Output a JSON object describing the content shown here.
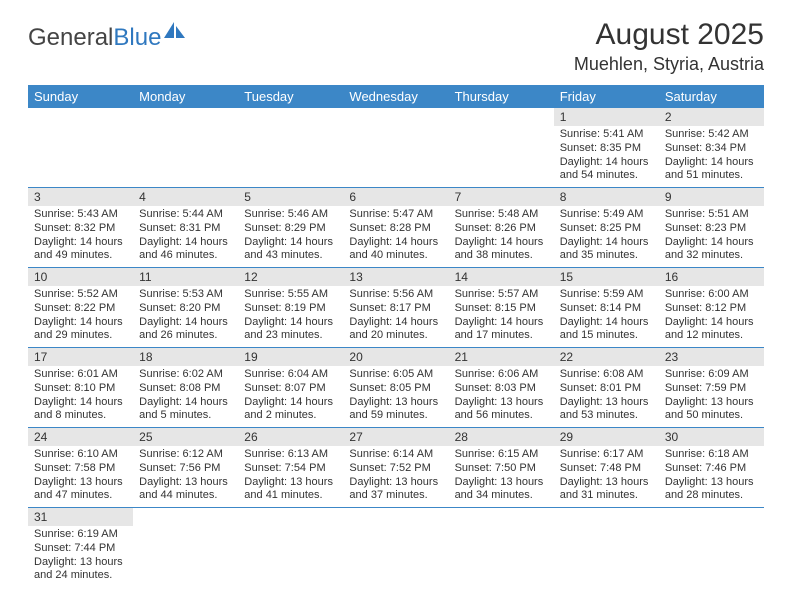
{
  "logo": {
    "text1": "General",
    "text2": "Blue"
  },
  "title": "August 2025",
  "location": "Muehlen, Styria, Austria",
  "colors": {
    "headerBg": "#3c87c7",
    "headerText": "#ffffff",
    "dayBarBg": "#e6e6e6",
    "rowBorder": "#3c87c7",
    "textColor": "#333333",
    "logoGray": "#444444",
    "logoBlue": "#2f78bf"
  },
  "weekdays": [
    "Sunday",
    "Monday",
    "Tuesday",
    "Wednesday",
    "Thursday",
    "Friday",
    "Saturday"
  ],
  "weeks": [
    [
      null,
      null,
      null,
      null,
      null,
      {
        "n": "1",
        "sunrise": "5:41 AM",
        "sunset": "8:35 PM",
        "day_h": "14",
        "day_m": "54"
      },
      {
        "n": "2",
        "sunrise": "5:42 AM",
        "sunset": "8:34 PM",
        "day_h": "14",
        "day_m": "51"
      }
    ],
    [
      {
        "n": "3",
        "sunrise": "5:43 AM",
        "sunset": "8:32 PM",
        "day_h": "14",
        "day_m": "49"
      },
      {
        "n": "4",
        "sunrise": "5:44 AM",
        "sunset": "8:31 PM",
        "day_h": "14",
        "day_m": "46"
      },
      {
        "n": "5",
        "sunrise": "5:46 AM",
        "sunset": "8:29 PM",
        "day_h": "14",
        "day_m": "43"
      },
      {
        "n": "6",
        "sunrise": "5:47 AM",
        "sunset": "8:28 PM",
        "day_h": "14",
        "day_m": "40"
      },
      {
        "n": "7",
        "sunrise": "5:48 AM",
        "sunset": "8:26 PM",
        "day_h": "14",
        "day_m": "38"
      },
      {
        "n": "8",
        "sunrise": "5:49 AM",
        "sunset": "8:25 PM",
        "day_h": "14",
        "day_m": "35"
      },
      {
        "n": "9",
        "sunrise": "5:51 AM",
        "sunset": "8:23 PM",
        "day_h": "14",
        "day_m": "32"
      }
    ],
    [
      {
        "n": "10",
        "sunrise": "5:52 AM",
        "sunset": "8:22 PM",
        "day_h": "14",
        "day_m": "29"
      },
      {
        "n": "11",
        "sunrise": "5:53 AM",
        "sunset": "8:20 PM",
        "day_h": "14",
        "day_m": "26"
      },
      {
        "n": "12",
        "sunrise": "5:55 AM",
        "sunset": "8:19 PM",
        "day_h": "14",
        "day_m": "23"
      },
      {
        "n": "13",
        "sunrise": "5:56 AM",
        "sunset": "8:17 PM",
        "day_h": "14",
        "day_m": "20"
      },
      {
        "n": "14",
        "sunrise": "5:57 AM",
        "sunset": "8:15 PM",
        "day_h": "14",
        "day_m": "17"
      },
      {
        "n": "15",
        "sunrise": "5:59 AM",
        "sunset": "8:14 PM",
        "day_h": "14",
        "day_m": "15"
      },
      {
        "n": "16",
        "sunrise": "6:00 AM",
        "sunset": "8:12 PM",
        "day_h": "14",
        "day_m": "12"
      }
    ],
    [
      {
        "n": "17",
        "sunrise": "6:01 AM",
        "sunset": "8:10 PM",
        "day_h": "14",
        "day_m": "8"
      },
      {
        "n": "18",
        "sunrise": "6:02 AM",
        "sunset": "8:08 PM",
        "day_h": "14",
        "day_m": "5"
      },
      {
        "n": "19",
        "sunrise": "6:04 AM",
        "sunset": "8:07 PM",
        "day_h": "14",
        "day_m": "2"
      },
      {
        "n": "20",
        "sunrise": "6:05 AM",
        "sunset": "8:05 PM",
        "day_h": "13",
        "day_m": "59"
      },
      {
        "n": "21",
        "sunrise": "6:06 AM",
        "sunset": "8:03 PM",
        "day_h": "13",
        "day_m": "56"
      },
      {
        "n": "22",
        "sunrise": "6:08 AM",
        "sunset": "8:01 PM",
        "day_h": "13",
        "day_m": "53"
      },
      {
        "n": "23",
        "sunrise": "6:09 AM",
        "sunset": "7:59 PM",
        "day_h": "13",
        "day_m": "50"
      }
    ],
    [
      {
        "n": "24",
        "sunrise": "6:10 AM",
        "sunset": "7:58 PM",
        "day_h": "13",
        "day_m": "47"
      },
      {
        "n": "25",
        "sunrise": "6:12 AM",
        "sunset": "7:56 PM",
        "day_h": "13",
        "day_m": "44"
      },
      {
        "n": "26",
        "sunrise": "6:13 AM",
        "sunset": "7:54 PM",
        "day_h": "13",
        "day_m": "41"
      },
      {
        "n": "27",
        "sunrise": "6:14 AM",
        "sunset": "7:52 PM",
        "day_h": "13",
        "day_m": "37"
      },
      {
        "n": "28",
        "sunrise": "6:15 AM",
        "sunset": "7:50 PM",
        "day_h": "13",
        "day_m": "34"
      },
      {
        "n": "29",
        "sunrise": "6:17 AM",
        "sunset": "7:48 PM",
        "day_h": "13",
        "day_m": "31"
      },
      {
        "n": "30",
        "sunrise": "6:18 AM",
        "sunset": "7:46 PM",
        "day_h": "13",
        "day_m": "28"
      }
    ],
    [
      {
        "n": "31",
        "sunrise": "6:19 AM",
        "sunset": "7:44 PM",
        "day_h": "13",
        "day_m": "24"
      },
      null,
      null,
      null,
      null,
      null,
      null
    ]
  ],
  "labels": {
    "sunrise": "Sunrise:",
    "sunset": "Sunset:",
    "daylight": "Daylight:",
    "hours": "hours",
    "and": "and",
    "minutes": "minutes."
  }
}
